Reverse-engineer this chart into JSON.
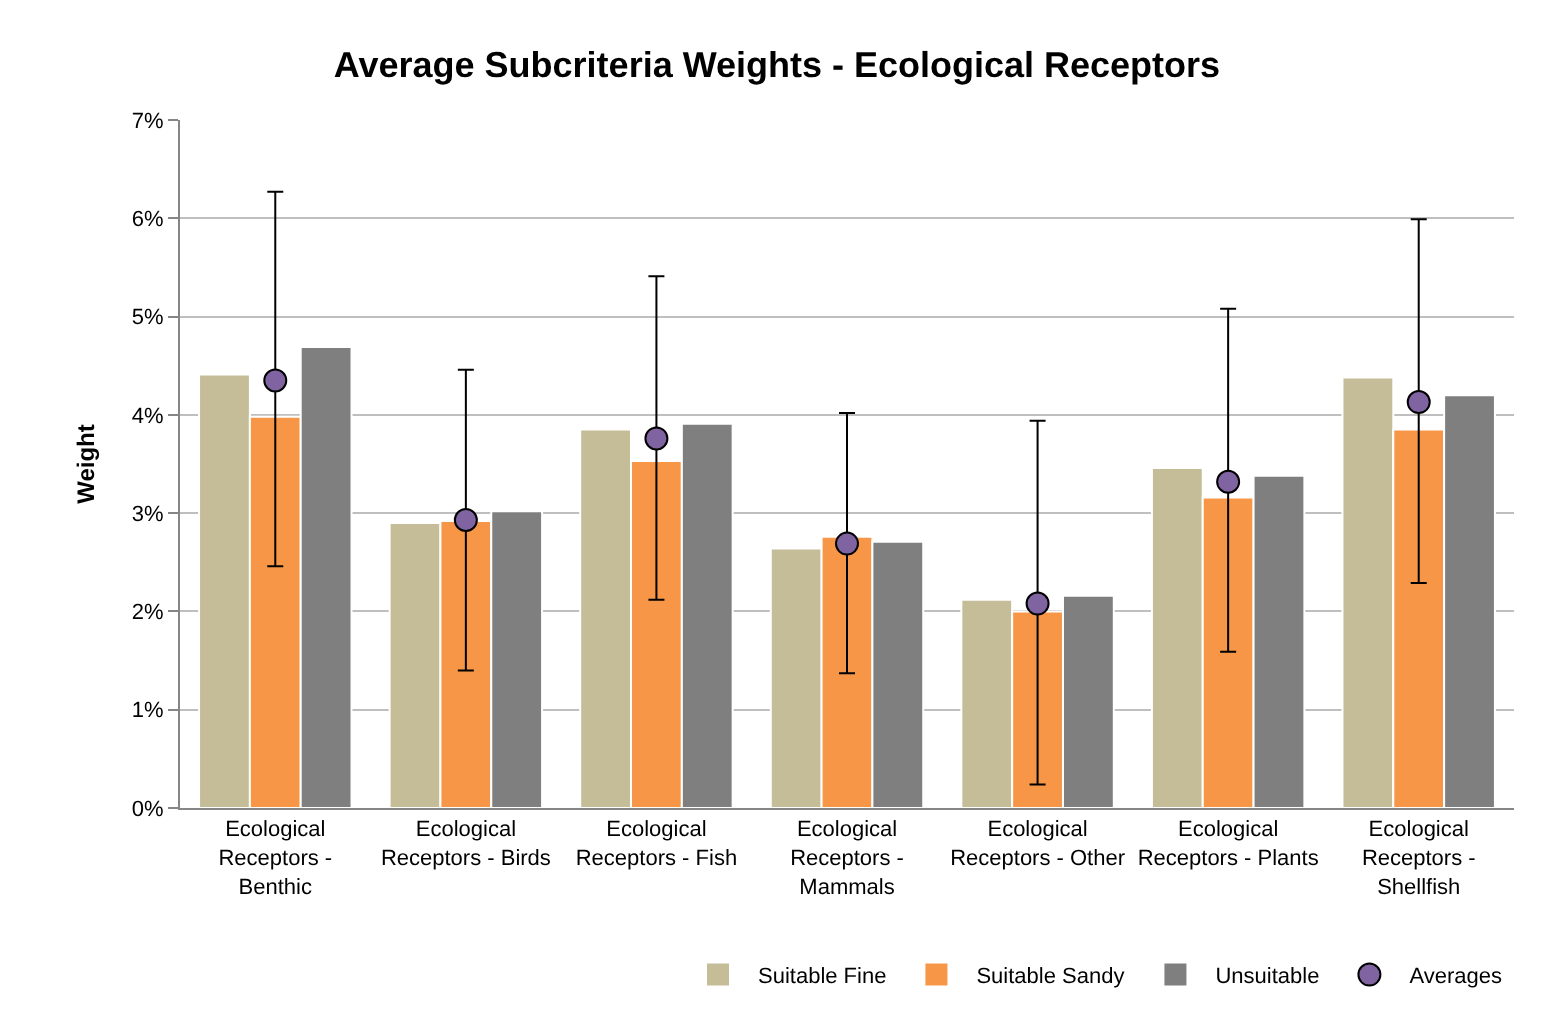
{
  "chart_data": {
    "type": "bar",
    "title": "Average Subcriteria Weights - Ecological Receptors",
    "ylabel": "Weight",
    "categories": [
      "Ecological Receptors - Benthic",
      "Ecological Receptors - Birds",
      "Ecological Receptors - Fish",
      "Ecological Receptors - Mammals",
      "Ecological Receptors - Other",
      "Ecological Receptors - Plants",
      "Ecological Receptors - Shellfish"
    ],
    "series": [
      {
        "name": "Suitable Fine",
        "color": "#c4bd97",
        "values": [
          4.41,
          2.9,
          3.85,
          2.64,
          2.12,
          3.46,
          4.38
        ]
      },
      {
        "name": "Suitable Sandy",
        "color": "#f79646",
        "values": [
          3.98,
          2.92,
          3.53,
          2.76,
          2.0,
          3.16,
          3.85
        ]
      },
      {
        "name": "Unsuitable",
        "color": "#7f7f7f",
        "values": [
          4.69,
          3.02,
          3.91,
          2.71,
          2.16,
          3.38,
          4.2
        ]
      },
      {
        "name": "Averages",
        "type": "scatter",
        "marker": "circle",
        "color": "#8064a2",
        "x": [
          "Ecological Receptors - Benthic",
          "Ecological Receptors - Birds",
          "Ecological Receptors - Fish",
          "Ecological Receptors - Mammals",
          "Ecological Receptors - Other",
          "Ecological Receptors - Plants",
          "Ecological Receptors - Shellfish"
        ],
        "values": [
          4.35,
          2.93,
          3.76,
          2.69,
          2.08,
          3.32,
          4.13
        ],
        "errors": [
          [
            2.46,
            6.27
          ],
          [
            1.4,
            4.46
          ],
          [
            2.12,
            5.41
          ],
          [
            1.37,
            4.02
          ],
          [
            0.24,
            3.94
          ],
          [
            1.59,
            5.08
          ],
          [
            2.29,
            5.99
          ]
        ]
      }
    ],
    "ylim": [
      0,
      7
    ],
    "yticks": [
      {
        "value": 0,
        "label": "0%"
      },
      {
        "value": 1,
        "label": "1%"
      },
      {
        "value": 2,
        "label": "2%"
      },
      {
        "value": 3,
        "label": "3%"
      },
      {
        "value": 4,
        "label": "4%"
      },
      {
        "value": 5,
        "label": "5%"
      },
      {
        "value": 6,
        "label": "6%"
      },
      {
        "value": 7,
        "label": "7%"
      }
    ],
    "grid": "y",
    "legend": "bottom right"
  }
}
